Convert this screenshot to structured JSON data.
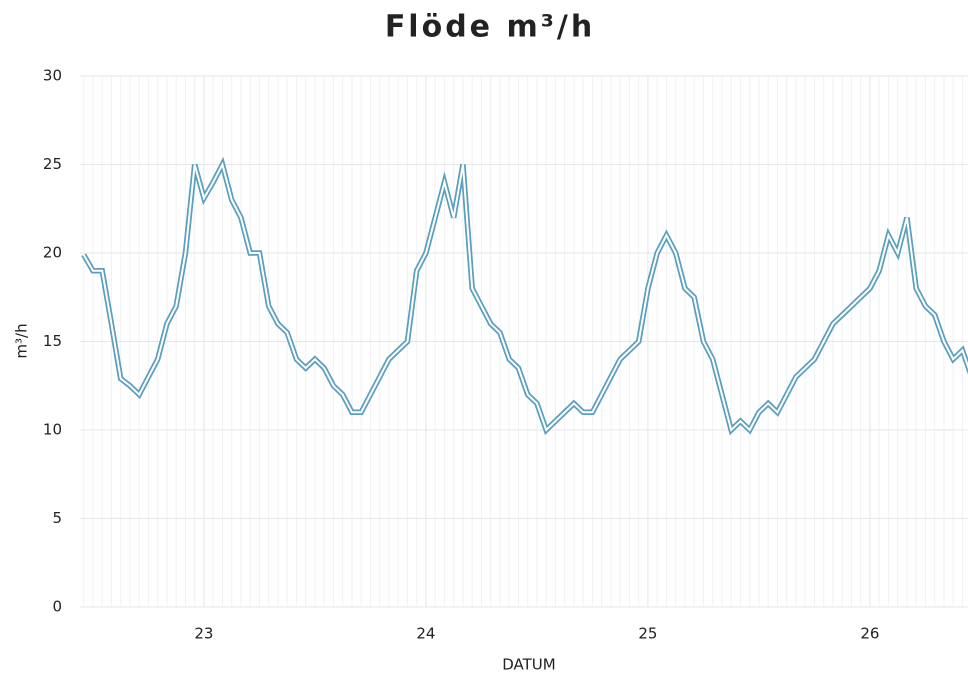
{
  "chart_data": {
    "type": "line",
    "title": "Flöde m³/h",
    "xlabel": "DATUM",
    "ylabel": "m³/h",
    "x": [
      22.4583,
      22.5,
      22.5417,
      22.5833,
      22.625,
      22.6667,
      22.7083,
      22.75,
      22.7917,
      22.8333,
      22.875,
      22.9167,
      22.9583,
      23,
      23.0417,
      23.0833,
      23.125,
      23.1667,
      23.2083,
      23.25,
      23.2917,
      23.3333,
      23.375,
      23.4167,
      23.4583,
      23.5,
      23.5417,
      23.5833,
      23.625,
      23.6667,
      23.7083,
      23.75,
      23.7917,
      23.8333,
      23.875,
      23.9167,
      23.9583,
      24,
      24.0417,
      24.0833,
      24.125,
      24.1667,
      24.2083,
      24.25,
      24.2917,
      24.3333,
      24.375,
      24.4167,
      24.4583,
      24.5,
      24.5417,
      24.5833,
      24.625,
      24.6667,
      24.7083,
      24.75,
      24.7917,
      24.8333,
      24.875,
      24.9167,
      24.9583,
      25,
      25.0417,
      25.0833,
      25.125,
      25.1667,
      25.2083,
      25.25,
      25.2917,
      25.3333,
      25.375,
      25.4167,
      25.4583,
      25.5,
      25.5417,
      25.5833,
      25.625,
      25.6667,
      25.7083,
      25.75,
      25.7917,
      25.8333,
      25.875,
      25.9167,
      25.9583,
      26,
      26.0417,
      26.0833,
      26.125,
      26.1667,
      26.2083,
      26.25,
      26.2917,
      26.3333,
      26.375,
      26.4167,
      26.4583
    ],
    "series": [
      {
        "name": "Flöde",
        "color": "#5a9fbd",
        "values": [
          19.9,
          19,
          19,
          16,
          12.9,
          12.5,
          12,
          13,
          14,
          16,
          17,
          20,
          25,
          23.1,
          24,
          25,
          23,
          22,
          20,
          20,
          17,
          16,
          15.5,
          14,
          13.5,
          14,
          13.5,
          12.5,
          12,
          11,
          11,
          12,
          13,
          14,
          14.5,
          15,
          19,
          20,
          22,
          24,
          22,
          25,
          18,
          17,
          16,
          15.5,
          14,
          13.5,
          12,
          11.5,
          10,
          10.5,
          11,
          11.5,
          11,
          11,
          12,
          13,
          14,
          14.5,
          15,
          18,
          20,
          21,
          20,
          18,
          17.5,
          15,
          14,
          12,
          10,
          10.5,
          10,
          11,
          11.5,
          11,
          12,
          13,
          13.5,
          14,
          15,
          16,
          16.5,
          17,
          17.5,
          18,
          19,
          21,
          20,
          22,
          18,
          17,
          16.5,
          15,
          14,
          14.5,
          13
        ]
      }
    ],
    "xlim": [
      22.4417,
      26.4417
    ],
    "xticks": [
      23,
      24,
      25,
      26
    ],
    "ylim": [
      0,
      30
    ],
    "yticks": [
      0,
      5,
      10,
      15,
      20,
      25,
      30
    ],
    "grid": true
  }
}
